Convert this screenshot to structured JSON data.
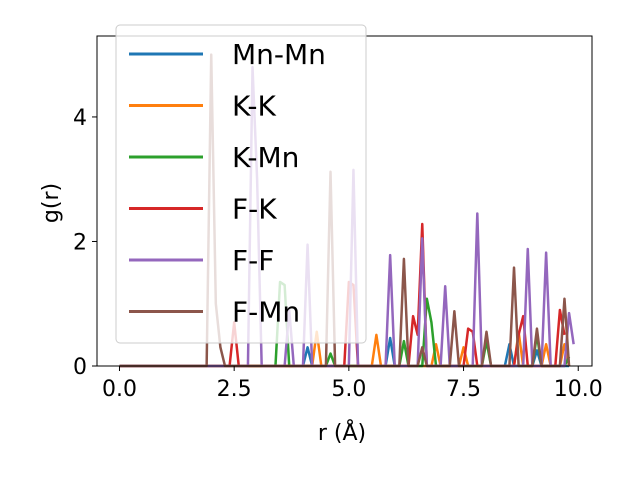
{
  "chart_data": {
    "type": "line",
    "title": "",
    "xlabel": "r (Å)",
    "ylabel": "g(r)",
    "xlim": [
      -0.49,
      10.3
    ],
    "ylim": [
      0,
      5.3
    ],
    "xticks": [
      0.0,
      2.5,
      5.0,
      7.5,
      10.0
    ],
    "xtick_labels": [
      "0.0",
      "2.5",
      "5.0",
      "7.5",
      "10.0"
    ],
    "yticks": [
      0,
      2,
      4
    ],
    "ytick_labels": [
      "0",
      "2",
      "4"
    ],
    "grid": false,
    "legend_position": "top-left",
    "series": [
      {
        "name": "Mn-Mn",
        "color": "#1f77b4",
        "x": [
          0.0,
          4.0,
          4.1,
          4.2,
          4.3,
          5.4,
          5.8,
          5.9,
          6.0,
          6.1,
          8.4,
          8.5,
          8.6,
          9.0,
          9.1,
          9.2,
          9.8
        ],
        "y": [
          0,
          0,
          0.3,
          0,
          0,
          0,
          0,
          0.45,
          0,
          0,
          0,
          0.35,
          0,
          0,
          0.25,
          0,
          0
        ]
      },
      {
        "name": "K-K",
        "color": "#ff7f0e",
        "x": [
          0.0,
          4.2,
          4.3,
          4.4,
          5.5,
          5.6,
          5.7,
          6.8,
          6.9,
          7.0,
          7.4,
          7.5,
          7.6,
          8.6,
          8.7,
          8.8,
          9.2,
          9.3,
          9.4,
          9.6,
          9.7,
          9.8
        ],
        "y": [
          0,
          0,
          0.55,
          0,
          0,
          0.5,
          0,
          0,
          0.35,
          0,
          0,
          0.3,
          0,
          0,
          0.55,
          0,
          0,
          0.35,
          0,
          0,
          0.35,
          0
        ]
      },
      {
        "name": "K-Mn",
        "color": "#2ca02c",
        "x": [
          0.0,
          3.4,
          3.5,
          3.6,
          3.7,
          4.5,
          4.6,
          4.7,
          6.1,
          6.2,
          6.3,
          6.6,
          6.7,
          6.8,
          6.9,
          7.9,
          8.0,
          8.1,
          9.0,
          9.1,
          9.2,
          9.7,
          9.8
        ],
        "y": [
          0,
          0,
          1.35,
          1.3,
          0,
          0,
          0.2,
          0,
          0,
          0.4,
          0,
          0,
          1.08,
          0.7,
          0,
          0,
          0.4,
          0,
          0,
          0.5,
          0,
          0,
          0.15
        ]
      },
      {
        "name": "F-K",
        "color": "#d62728",
        "x": [
          0.0,
          2.4,
          2.5,
          2.6,
          4.9,
          5.0,
          5.1,
          5.2,
          6.3,
          6.4,
          6.5,
          6.6,
          6.7,
          7.5,
          7.6,
          7.7,
          7.8,
          8.6,
          8.7,
          8.8,
          8.9,
          9.5,
          9.6,
          9.7
        ],
        "y": [
          0,
          0,
          0.7,
          0,
          0,
          1.35,
          1.3,
          0,
          0,
          0.8,
          0.5,
          2.28,
          0,
          0,
          0.6,
          0.55,
          0,
          0,
          0.5,
          0.8,
          0,
          0,
          0.9,
          0.5
        ]
      },
      {
        "name": "F-F",
        "color": "#9467bd",
        "x": [
          0.0,
          2.8,
          2.9,
          3.0,
          3.1,
          3.6,
          3.7,
          3.8,
          4.0,
          4.1,
          4.2,
          5.0,
          5.1,
          5.2,
          5.8,
          5.9,
          6.0,
          6.5,
          6.6,
          6.7,
          7.0,
          7.1,
          7.2,
          7.7,
          7.8,
          7.9,
          8.8,
          8.9,
          9.0,
          9.2,
          9.3,
          9.4,
          9.7,
          9.8,
          9.9
        ],
        "y": [
          0,
          0,
          4.8,
          3.0,
          0,
          0,
          0.9,
          0,
          0,
          1.95,
          0,
          0,
          3.15,
          0,
          0,
          1.78,
          0,
          0,
          2.05,
          0,
          0,
          1.28,
          0,
          0,
          2.45,
          0,
          0,
          1.88,
          0,
          0,
          1.82,
          0,
          0,
          0.85,
          0.35
        ]
      },
      {
        "name": "F-Mn",
        "color": "#8c564b",
        "x": [
          0.0,
          1.9,
          2.0,
          2.1,
          2.2,
          2.3,
          4.5,
          4.6,
          4.7,
          6.1,
          6.2,
          6.3,
          6.5,
          6.6,
          6.7,
          7.2,
          7.3,
          7.4,
          7.9,
          8.0,
          8.1,
          8.5,
          8.6,
          8.7,
          9.0,
          9.1,
          9.2,
          9.6,
          9.7,
          9.8
        ],
        "y": [
          0,
          0,
          5.0,
          1.0,
          0.3,
          0,
          0,
          3.12,
          0,
          0,
          1.72,
          0,
          0,
          0.3,
          0,
          0,
          0.88,
          0,
          0,
          0.55,
          0,
          0,
          1.58,
          0,
          0,
          0.6,
          0,
          0,
          1.08,
          0
        ]
      }
    ]
  }
}
